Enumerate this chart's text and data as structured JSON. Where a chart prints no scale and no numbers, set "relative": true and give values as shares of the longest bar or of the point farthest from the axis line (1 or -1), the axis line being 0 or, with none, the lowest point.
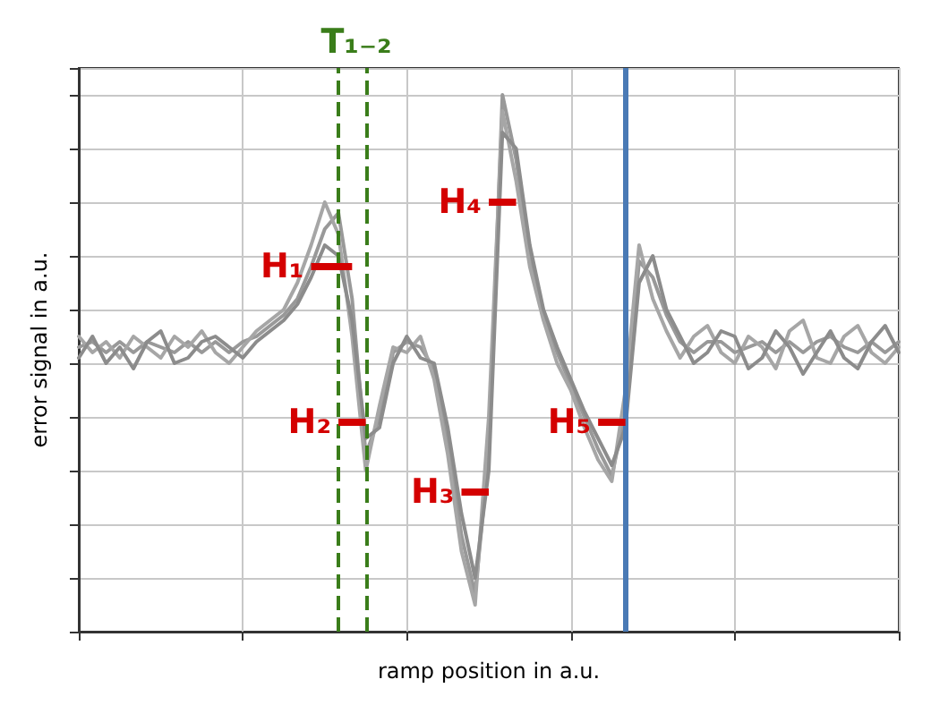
{
  "chart_data": {
    "type": "line",
    "relative": true,
    "xlabel": "ramp position in a.u.",
    "ylabel": "error signal in a.u.",
    "categories": [
      null,
      null,
      null,
      null,
      null,
      null,
      null,
      null,
      null,
      null,
      null,
      null,
      null,
      null,
      null,
      null,
      null,
      null,
      null,
      null,
      null,
      null,
      null,
      null,
      null,
      null,
      null,
      null,
      null,
      null,
      null,
      null,
      null,
      null,
      null,
      null,
      null,
      null,
      null,
      null,
      null,
      null,
      null,
      null,
      null,
      null,
      null,
      null,
      null,
      null,
      null,
      null,
      null,
      null,
      null,
      null,
      null,
      null,
      null,
      null,
      null
    ],
    "grid": true,
    "marker": "none",
    "line_style": "solid",
    "series": [
      {
        "color": "#999999",
        "values": [
          0.53,
          0.54,
          0.52,
          0.54,
          0.52,
          0.54,
          0.53,
          0.52,
          0.54,
          0.52,
          0.54,
          0.52,
          0.54,
          0.55,
          0.57,
          0.59,
          0.62,
          0.68,
          0.75,
          0.78,
          0.62,
          0.33,
          0.4,
          0.52,
          0.54,
          0.53,
          0.49,
          0.36,
          0.18,
          0.07,
          0.33,
          1.0,
          0.88,
          0.7,
          0.59,
          0.52,
          0.46,
          0.4,
          0.34,
          0.29,
          0.41,
          0.69,
          0.66,
          0.59,
          0.54,
          0.52,
          0.54,
          0.54,
          0.52,
          0.53,
          0.54,
          0.52,
          0.54,
          0.52,
          0.54,
          0.55,
          0.53,
          0.52,
          0.54,
          0.52,
          0.54
        ]
      },
      {
        "color": "#a6a6a6",
        "values": [
          0.55,
          0.52,
          0.54,
          0.51,
          0.55,
          0.53,
          0.51,
          0.55,
          0.53,
          0.56,
          0.52,
          0.5,
          0.53,
          0.56,
          0.58,
          0.6,
          0.65,
          0.72,
          0.8,
          0.74,
          0.55,
          0.3,
          0.42,
          0.53,
          0.52,
          0.55,
          0.47,
          0.33,
          0.15,
          0.05,
          0.4,
          0.97,
          0.84,
          0.68,
          0.58,
          0.5,
          0.45,
          0.38,
          0.32,
          0.28,
          0.45,
          0.72,
          0.62,
          0.56,
          0.51,
          0.55,
          0.57,
          0.52,
          0.5,
          0.55,
          0.53,
          0.49,
          0.56,
          0.58,
          0.51,
          0.5,
          0.55,
          0.57,
          0.52,
          0.5,
          0.53
        ]
      },
      {
        "color": "#8c8c8c",
        "values": [
          0.51,
          0.55,
          0.5,
          0.53,
          0.49,
          0.54,
          0.56,
          0.5,
          0.51,
          0.54,
          0.55,
          0.53,
          0.51,
          0.54,
          0.56,
          0.58,
          0.61,
          0.66,
          0.72,
          0.7,
          0.58,
          0.36,
          0.38,
          0.5,
          0.55,
          0.51,
          0.5,
          0.38,
          0.22,
          0.1,
          0.3,
          0.93,
          0.9,
          0.72,
          0.6,
          0.53,
          0.47,
          0.41,
          0.36,
          0.31,
          0.38,
          0.65,
          0.7,
          0.6,
          0.55,
          0.5,
          0.52,
          0.56,
          0.55,
          0.49,
          0.51,
          0.56,
          0.53,
          0.48,
          0.52,
          0.56,
          0.51,
          0.49,
          0.54,
          0.57,
          0.52
        ]
      }
    ],
    "annotations": [
      "T₁₋₂",
      "H₁",
      "H₂",
      "H₃",
      "H₄",
      "H₅"
    ]
  }
}
